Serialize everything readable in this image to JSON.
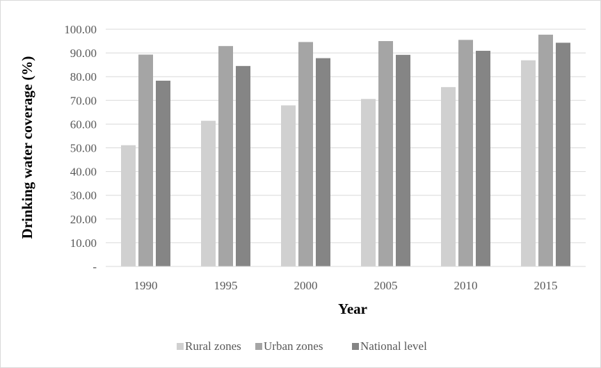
{
  "chart_data": {
    "type": "bar",
    "title": "",
    "xlabel": "Year",
    "ylabel": "Drinking water coverage (%)",
    "categories": [
      "1990",
      "1995",
      "2000",
      "2005",
      "2010",
      "2015"
    ],
    "series": [
      {
        "name": "Rural zones",
        "color": "#d0d0d0",
        "values": [
          51.1,
          61.4,
          67.9,
          70.6,
          75.6,
          86.9
        ]
      },
      {
        "name": "Urban zones",
        "color": "#a5a5a5",
        "values": [
          89.3,
          92.9,
          94.6,
          95.0,
          95.5,
          97.7
        ]
      },
      {
        "name": "National level",
        "color": "#858585",
        "values": [
          78.3,
          84.5,
          87.8,
          89.2,
          90.9,
          94.3
        ]
      }
    ],
    "ylim": [
      0,
      100
    ],
    "yticks": [
      "-",
      "10.00",
      "20.00",
      "30.00",
      "40.00",
      "50.00",
      "60.00",
      "70.00",
      "80.00",
      "90.00",
      "100.00"
    ],
    "grid": true,
    "legend_position": "bottom"
  }
}
